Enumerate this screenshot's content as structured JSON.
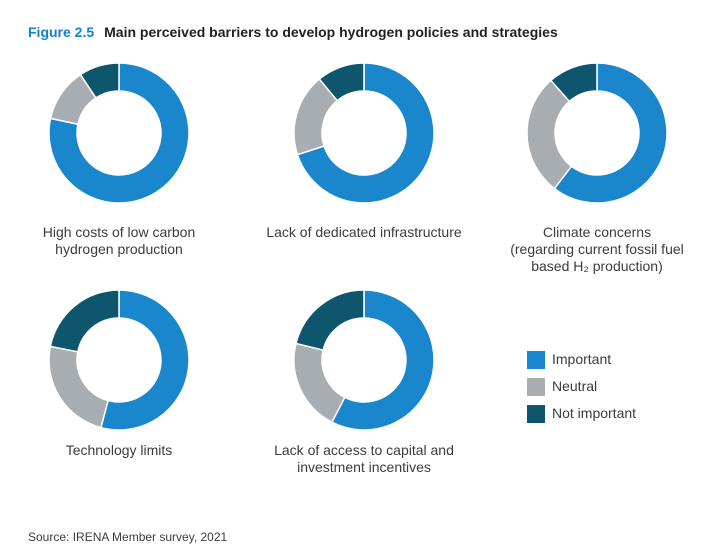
{
  "figure": {
    "number": "Figure 2.5",
    "title": "Main perceived barriers to develop hydrogen policies and strategies"
  },
  "colors": {
    "important": "#1a87cc",
    "neutral": "#a8adb1",
    "not_important": "#0d566e"
  },
  "chart_data": [
    {
      "type": "pie",
      "donut": true,
      "label_lines": [
        "High costs of low carbon",
        "hydrogen production"
      ],
      "categories": [
        "Important",
        "Neutral",
        "Not important"
      ],
      "values": [
        76,
        12,
        9
      ]
    },
    {
      "type": "pie",
      "donut": true,
      "label_lines": [
        "Lack of dedicated infrastructure"
      ],
      "categories": [
        "Important",
        "Neutral",
        "Not important"
      ],
      "values": [
        70,
        19,
        11
      ]
    },
    {
      "type": "pie",
      "donut": true,
      "label_lines": [
        "Climate concerns",
        "(regarding current fossil fuel",
        "based H₂ production)"
      ],
      "categories": [
        "Important",
        "Neutral",
        "Not important"
      ],
      "values": [
        58,
        27,
        11
      ]
    },
    {
      "type": "pie",
      "donut": true,
      "label_lines": [
        "Technology limits"
      ],
      "categories": [
        "Important",
        "Neutral",
        "Not important"
      ],
      "values": [
        52,
        23,
        21
      ]
    },
    {
      "type": "pie",
      "donut": true,
      "label_lines": [
        "Lack of access to capital and",
        "investment incentives"
      ],
      "categories": [
        "Important",
        "Neutral",
        "Not important"
      ],
      "values": [
        57,
        21,
        21
      ]
    }
  ],
  "legend": [
    {
      "label": "Important",
      "color": "#1a87cc"
    },
    {
      "label": "Neutral",
      "color": "#a8adb1"
    },
    {
      "label": "Not important",
      "color": "#0d566e"
    }
  ],
  "source": "Source: IRENA Member survey, 2021"
}
